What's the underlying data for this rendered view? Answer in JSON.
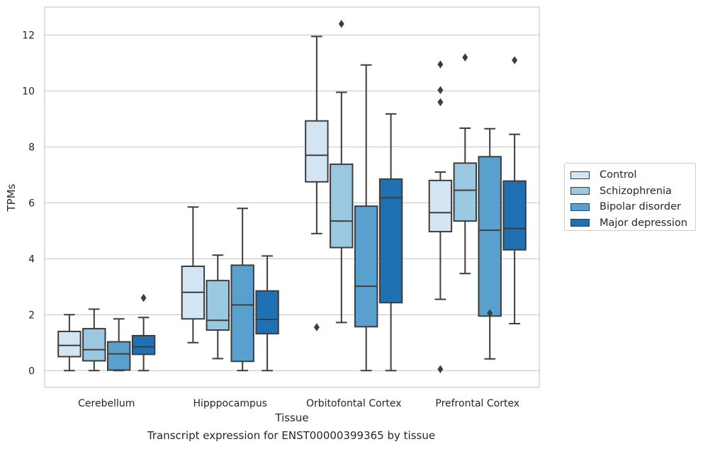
{
  "chart_data": {
    "type": "box",
    "title": "Transcript expression for ENST00000399365 by tissue",
    "xlabel": "Tissue",
    "ylabel": "TPMs",
    "ylim": [
      -0.6,
      13.0
    ],
    "yticks": [
      0,
      2,
      4,
      6,
      8,
      10,
      12
    ],
    "grid": "horizontal",
    "legend_position": "right",
    "categories": [
      "Cerebellum",
      "Hipppocampus",
      "Orbitofontal Cortex",
      "Prefrontal Cortex"
    ],
    "series": [
      {
        "name": "Control",
        "color": "#d3e4f3",
        "boxes": [
          {
            "whislo": 0.0,
            "q1": 0.5,
            "med": 0.9,
            "q3": 1.4,
            "whishi": 2.0,
            "fliers": []
          },
          {
            "whislo": 1.0,
            "q1": 1.85,
            "med": 2.8,
            "q3": 3.73,
            "whishi": 5.85,
            "fliers": []
          },
          {
            "whislo": 4.9,
            "q1": 6.75,
            "med": 7.7,
            "q3": 8.93,
            "whishi": 11.95,
            "fliers": [
              1.55
            ]
          },
          {
            "whislo": 2.55,
            "q1": 4.97,
            "med": 5.65,
            "q3": 6.8,
            "whishi": 7.1,
            "fliers": [
              0.05,
              9.6,
              10.03,
              10.95
            ]
          }
        ]
      },
      {
        "name": "Schizophrenia",
        "color": "#9ac8e0",
        "boxes": [
          {
            "whislo": 0.0,
            "q1": 0.35,
            "med": 0.75,
            "q3": 1.5,
            "whishi": 2.2,
            "fliers": []
          },
          {
            "whislo": 0.43,
            "q1": 1.45,
            "med": 1.8,
            "q3": 3.22,
            "whishi": 4.13,
            "fliers": []
          },
          {
            "whislo": 1.72,
            "q1": 4.4,
            "med": 5.35,
            "q3": 7.38,
            "whishi": 9.95,
            "fliers": [
              12.4
            ]
          },
          {
            "whislo": 3.47,
            "q1": 5.35,
            "med": 6.45,
            "q3": 7.42,
            "whishi": 8.67,
            "fliers": [
              11.2
            ]
          }
        ]
      },
      {
        "name": "Bipolar disorder",
        "color": "#5aa0ce",
        "boxes": [
          {
            "whislo": 0.0,
            "q1": 0.02,
            "med": 0.6,
            "q3": 1.03,
            "whishi": 1.85,
            "fliers": []
          },
          {
            "whislo": 0.0,
            "q1": 0.33,
            "med": 2.35,
            "q3": 3.77,
            "whishi": 5.8,
            "fliers": []
          },
          {
            "whislo": 0.0,
            "q1": 1.57,
            "med": 3.02,
            "q3": 5.88,
            "whishi": 10.93,
            "fliers": []
          },
          {
            "whislo": 0.42,
            "q1": 1.95,
            "med": 5.02,
            "q3": 7.65,
            "whishi": 8.65,
            "fliers": [
              2.05
            ]
          }
        ]
      },
      {
        "name": "Major depression",
        "color": "#2070b4",
        "boxes": [
          {
            "whislo": 0.0,
            "q1": 0.58,
            "med": 0.85,
            "q3": 1.25,
            "whishi": 1.9,
            "fliers": [
              2.6
            ]
          },
          {
            "whislo": 0.0,
            "q1": 1.32,
            "med": 1.83,
            "q3": 2.85,
            "whishi": 4.1,
            "fliers": []
          },
          {
            "whislo": 0.0,
            "q1": 2.43,
            "med": 6.18,
            "q3": 6.85,
            "whishi": 9.18,
            "fliers": []
          },
          {
            "whislo": 1.68,
            "q1": 4.32,
            "med": 5.08,
            "q3": 6.78,
            "whishi": 8.45,
            "fliers": [
              11.1
            ]
          }
        ]
      }
    ]
  }
}
